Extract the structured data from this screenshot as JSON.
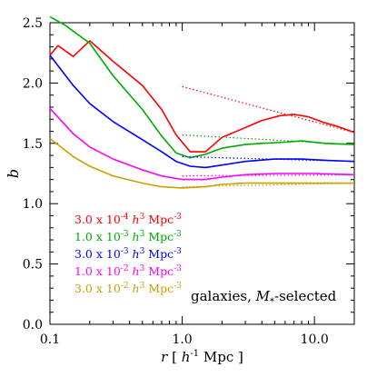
{
  "chart_data": {
    "type": "line",
    "x_scale": "log",
    "xlim": [
      0.1,
      20
    ],
    "ylim": [
      0.0,
      2.5
    ],
    "x_ticks": [
      0.1,
      1.0,
      10.0
    ],
    "x_tick_labels": [
      "0.1",
      "1.0",
      "10.0"
    ],
    "y_ticks": [
      0.0,
      0.5,
      1.0,
      1.5,
      2.0,
      2.5
    ],
    "y_tick_labels": [
      "0.0",
      "0.5",
      "1.0",
      "1.5",
      "2.0",
      "2.5"
    ],
    "ylabel": "b",
    "xlabel_parts": {
      "var": "r",
      "pre": "[ ",
      "unit": "h",
      "exp": "-1",
      "post": " Mpc ]"
    },
    "annotation": {
      "text": "galaxies, ",
      "math": "M",
      "sub": "*",
      "suffix": "-selected"
    },
    "grid": false,
    "legend_placement": "bottom-left",
    "series": [
      {
        "label_parts": [
          "3.0 x 10",
          "-4",
          " h",
          "3",
          " Mpc",
          "-3"
        ],
        "color": "#ff0000",
        "x": [
          0.1,
          0.115,
          0.15,
          0.2,
          0.3,
          0.5,
          0.7,
          0.9,
          1.15,
          1.5,
          2.0,
          3.0,
          4.0,
          5.5,
          7.0,
          9.0,
          12.0,
          15.0,
          20.0
        ],
        "y": [
          2.23,
          2.31,
          2.22,
          2.35,
          2.18,
          1.98,
          1.78,
          1.57,
          1.43,
          1.43,
          1.55,
          1.63,
          1.69,
          1.73,
          1.74,
          1.72,
          1.67,
          1.64,
          1.59
        ],
        "fit": {
          "x": [
            1.0,
            20.0
          ],
          "y": [
            1.97,
            1.59
          ]
        }
      },
      {
        "label_parts": [
          "1.0 x 10",
          "-3",
          " h",
          "3",
          " Mpc",
          "-3"
        ],
        "color": "#00aa00",
        "x": [
          0.1,
          0.13,
          0.2,
          0.3,
          0.5,
          0.7,
          0.9,
          1.15,
          1.5,
          2.0,
          3.0,
          4.0,
          6.0,
          8.0,
          12.0,
          20.0
        ],
        "y": [
          2.55,
          2.48,
          2.33,
          2.06,
          1.78,
          1.56,
          1.42,
          1.38,
          1.41,
          1.46,
          1.49,
          1.5,
          1.51,
          1.52,
          1.5,
          1.49
        ],
        "fit": {
          "x": [
            1.0,
            20.0
          ],
          "y": [
            1.57,
            1.49
          ]
        }
      },
      {
        "label_parts": [
          "3.0 x 10",
          "-3",
          " h",
          "3",
          " Mpc",
          "-3"
        ],
        "color": "#0000ff",
        "x": [
          0.1,
          0.15,
          0.2,
          0.3,
          0.5,
          0.7,
          0.9,
          1.15,
          1.5,
          2.0,
          3.0,
          5.0,
          8.0,
          12.0,
          20.0
        ],
        "y": [
          2.23,
          1.98,
          1.83,
          1.68,
          1.53,
          1.43,
          1.35,
          1.31,
          1.3,
          1.32,
          1.35,
          1.37,
          1.37,
          1.36,
          1.35
        ],
        "fit": {
          "x": [
            1.0,
            20.0
          ],
          "y": [
            1.39,
            1.35
          ]
        }
      },
      {
        "label_parts": [
          "1.0 x 10",
          "-2",
          " h",
          "3",
          " Mpc",
          "-3"
        ],
        "color": "#ff00ff",
        "x": [
          0.1,
          0.15,
          0.2,
          0.3,
          0.5,
          0.7,
          1.0,
          1.5,
          2.0,
          3.0,
          5.0,
          10.0,
          20.0
        ],
        "y": [
          1.79,
          1.58,
          1.47,
          1.37,
          1.28,
          1.23,
          1.2,
          1.2,
          1.22,
          1.24,
          1.25,
          1.25,
          1.24
        ],
        "fit": {
          "x": [
            1.0,
            20.0
          ],
          "y": [
            1.23,
            1.24
          ]
        }
      },
      {
        "label_parts": [
          "3.0 x 10",
          "-2",
          " h",
          "3",
          " Mpc",
          "-3"
        ],
        "color": "#c8a000",
        "x": [
          0.1,
          0.15,
          0.2,
          0.3,
          0.5,
          0.7,
          1.0,
          1.5,
          2.0,
          3.0,
          5.0,
          10.0,
          20.0
        ],
        "y": [
          1.54,
          1.39,
          1.31,
          1.23,
          1.17,
          1.14,
          1.13,
          1.14,
          1.16,
          1.17,
          1.17,
          1.17,
          1.17
        ],
        "fit": {
          "x": [
            1.0,
            20.0
          ],
          "y": [
            1.14,
            1.17
          ]
        }
      }
    ]
  }
}
